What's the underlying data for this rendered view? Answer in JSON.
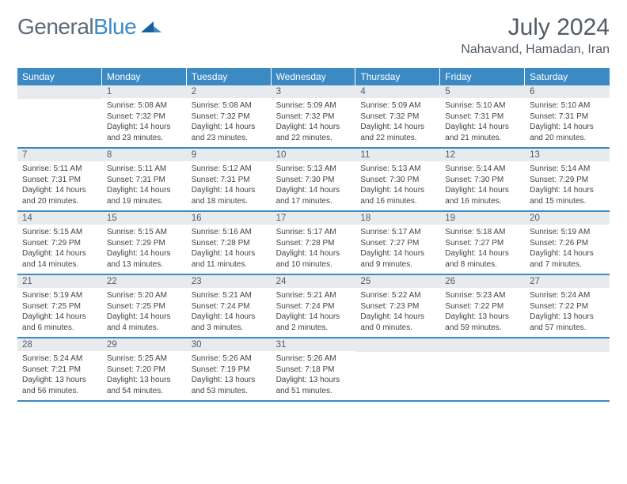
{
  "brand": {
    "part1": "General",
    "part2": "Blue"
  },
  "title": "July 2024",
  "location": "Nahavand, Hamadan, Iran",
  "colors": {
    "header_bg": "#3b8ac4",
    "header_text": "#ffffff",
    "daynum_bg": "#e8ebee",
    "text": "#444444",
    "title_text": "#525c66"
  },
  "dow": [
    "Sunday",
    "Monday",
    "Tuesday",
    "Wednesday",
    "Thursday",
    "Friday",
    "Saturday"
  ],
  "weeks": [
    [
      null,
      {
        "n": "1",
        "sr": "Sunrise: 5:08 AM",
        "ss": "Sunset: 7:32 PM",
        "d1": "Daylight: 14 hours",
        "d2": "and 23 minutes."
      },
      {
        "n": "2",
        "sr": "Sunrise: 5:08 AM",
        "ss": "Sunset: 7:32 PM",
        "d1": "Daylight: 14 hours",
        "d2": "and 23 minutes."
      },
      {
        "n": "3",
        "sr": "Sunrise: 5:09 AM",
        "ss": "Sunset: 7:32 PM",
        "d1": "Daylight: 14 hours",
        "d2": "and 22 minutes."
      },
      {
        "n": "4",
        "sr": "Sunrise: 5:09 AM",
        "ss": "Sunset: 7:32 PM",
        "d1": "Daylight: 14 hours",
        "d2": "and 22 minutes."
      },
      {
        "n": "5",
        "sr": "Sunrise: 5:10 AM",
        "ss": "Sunset: 7:31 PM",
        "d1": "Daylight: 14 hours",
        "d2": "and 21 minutes."
      },
      {
        "n": "6",
        "sr": "Sunrise: 5:10 AM",
        "ss": "Sunset: 7:31 PM",
        "d1": "Daylight: 14 hours",
        "d2": "and 20 minutes."
      }
    ],
    [
      {
        "n": "7",
        "sr": "Sunrise: 5:11 AM",
        "ss": "Sunset: 7:31 PM",
        "d1": "Daylight: 14 hours",
        "d2": "and 20 minutes."
      },
      {
        "n": "8",
        "sr": "Sunrise: 5:11 AM",
        "ss": "Sunset: 7:31 PM",
        "d1": "Daylight: 14 hours",
        "d2": "and 19 minutes."
      },
      {
        "n": "9",
        "sr": "Sunrise: 5:12 AM",
        "ss": "Sunset: 7:31 PM",
        "d1": "Daylight: 14 hours",
        "d2": "and 18 minutes."
      },
      {
        "n": "10",
        "sr": "Sunrise: 5:13 AM",
        "ss": "Sunset: 7:30 PM",
        "d1": "Daylight: 14 hours",
        "d2": "and 17 minutes."
      },
      {
        "n": "11",
        "sr": "Sunrise: 5:13 AM",
        "ss": "Sunset: 7:30 PM",
        "d1": "Daylight: 14 hours",
        "d2": "and 16 minutes."
      },
      {
        "n": "12",
        "sr": "Sunrise: 5:14 AM",
        "ss": "Sunset: 7:30 PM",
        "d1": "Daylight: 14 hours",
        "d2": "and 16 minutes."
      },
      {
        "n": "13",
        "sr": "Sunrise: 5:14 AM",
        "ss": "Sunset: 7:29 PM",
        "d1": "Daylight: 14 hours",
        "d2": "and 15 minutes."
      }
    ],
    [
      {
        "n": "14",
        "sr": "Sunrise: 5:15 AM",
        "ss": "Sunset: 7:29 PM",
        "d1": "Daylight: 14 hours",
        "d2": "and 14 minutes."
      },
      {
        "n": "15",
        "sr": "Sunrise: 5:15 AM",
        "ss": "Sunset: 7:29 PM",
        "d1": "Daylight: 14 hours",
        "d2": "and 13 minutes."
      },
      {
        "n": "16",
        "sr": "Sunrise: 5:16 AM",
        "ss": "Sunset: 7:28 PM",
        "d1": "Daylight: 14 hours",
        "d2": "and 11 minutes."
      },
      {
        "n": "17",
        "sr": "Sunrise: 5:17 AM",
        "ss": "Sunset: 7:28 PM",
        "d1": "Daylight: 14 hours",
        "d2": "and 10 minutes."
      },
      {
        "n": "18",
        "sr": "Sunrise: 5:17 AM",
        "ss": "Sunset: 7:27 PM",
        "d1": "Daylight: 14 hours",
        "d2": "and 9 minutes."
      },
      {
        "n": "19",
        "sr": "Sunrise: 5:18 AM",
        "ss": "Sunset: 7:27 PM",
        "d1": "Daylight: 14 hours",
        "d2": "and 8 minutes."
      },
      {
        "n": "20",
        "sr": "Sunrise: 5:19 AM",
        "ss": "Sunset: 7:26 PM",
        "d1": "Daylight: 14 hours",
        "d2": "and 7 minutes."
      }
    ],
    [
      {
        "n": "21",
        "sr": "Sunrise: 5:19 AM",
        "ss": "Sunset: 7:25 PM",
        "d1": "Daylight: 14 hours",
        "d2": "and 6 minutes."
      },
      {
        "n": "22",
        "sr": "Sunrise: 5:20 AM",
        "ss": "Sunset: 7:25 PM",
        "d1": "Daylight: 14 hours",
        "d2": "and 4 minutes."
      },
      {
        "n": "23",
        "sr": "Sunrise: 5:21 AM",
        "ss": "Sunset: 7:24 PM",
        "d1": "Daylight: 14 hours",
        "d2": "and 3 minutes."
      },
      {
        "n": "24",
        "sr": "Sunrise: 5:21 AM",
        "ss": "Sunset: 7:24 PM",
        "d1": "Daylight: 14 hours",
        "d2": "and 2 minutes."
      },
      {
        "n": "25",
        "sr": "Sunrise: 5:22 AM",
        "ss": "Sunset: 7:23 PM",
        "d1": "Daylight: 14 hours",
        "d2": "and 0 minutes."
      },
      {
        "n": "26",
        "sr": "Sunrise: 5:23 AM",
        "ss": "Sunset: 7:22 PM",
        "d1": "Daylight: 13 hours",
        "d2": "and 59 minutes."
      },
      {
        "n": "27",
        "sr": "Sunrise: 5:24 AM",
        "ss": "Sunset: 7:22 PM",
        "d1": "Daylight: 13 hours",
        "d2": "and 57 minutes."
      }
    ],
    [
      {
        "n": "28",
        "sr": "Sunrise: 5:24 AM",
        "ss": "Sunset: 7:21 PM",
        "d1": "Daylight: 13 hours",
        "d2": "and 56 minutes."
      },
      {
        "n": "29",
        "sr": "Sunrise: 5:25 AM",
        "ss": "Sunset: 7:20 PM",
        "d1": "Daylight: 13 hours",
        "d2": "and 54 minutes."
      },
      {
        "n": "30",
        "sr": "Sunrise: 5:26 AM",
        "ss": "Sunset: 7:19 PM",
        "d1": "Daylight: 13 hours",
        "d2": "and 53 minutes."
      },
      {
        "n": "31",
        "sr": "Sunrise: 5:26 AM",
        "ss": "Sunset: 7:18 PM",
        "d1": "Daylight: 13 hours",
        "d2": "and 51 minutes."
      },
      null,
      null,
      null
    ]
  ]
}
